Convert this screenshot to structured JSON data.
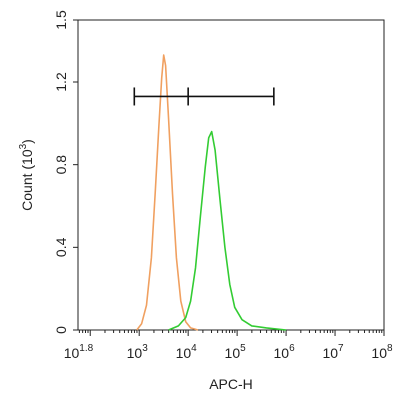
{
  "chart_data": {
    "type": "line",
    "title": "",
    "xlabel": "APC-H",
    "ylabel_main": "Count  (10",
    "ylabel_exp": "3",
    "ylabel_close": ")",
    "x_scale": "log10",
    "xlim": [
      1.75,
      8.0
    ],
    "ylim": [
      0,
      1.5
    ],
    "x_ticks": [
      {
        "base": "10",
        "exp": "1.8",
        "log": 1.8
      },
      {
        "base": "10",
        "exp": "3",
        "log": 3
      },
      {
        "base": "10",
        "exp": "4",
        "log": 4
      },
      {
        "base": "10",
        "exp": "5",
        "log": 5
      },
      {
        "base": "10",
        "exp": "6",
        "log": 6
      },
      {
        "base": "10",
        "exp": "7",
        "log": 7
      },
      {
        "base": "10",
        "exp": "8",
        "log": 8
      }
    ],
    "y_ticks": [
      {
        "label": "0",
        "value": 0
      },
      {
        "label": "0.4",
        "value": 0.4
      },
      {
        "label": "0.8",
        "value": 0.8
      },
      {
        "label": "1.2",
        "value": 1.2
      },
      {
        "label": "1.5",
        "value": 1.5
      }
    ],
    "gate": {
      "x_start_log": 2.9,
      "x_mid_log": 4.0,
      "x_end_log": 5.75,
      "y": 1.13
    },
    "series": [
      {
        "color": "#f0a060",
        "points": [
          [
            2.95,
            0.0
          ],
          [
            3.05,
            0.03
          ],
          [
            3.15,
            0.12
          ],
          [
            3.25,
            0.35
          ],
          [
            3.33,
            0.68
          ],
          [
            3.4,
            0.98
          ],
          [
            3.46,
            1.22
          ],
          [
            3.5,
            1.33
          ],
          [
            3.54,
            1.28
          ],
          [
            3.6,
            1.02
          ],
          [
            3.68,
            0.66
          ],
          [
            3.76,
            0.35
          ],
          [
            3.85,
            0.14
          ],
          [
            3.95,
            0.04
          ],
          [
            4.05,
            0.01
          ],
          [
            4.2,
            0.0
          ]
        ]
      },
      {
        "color": "#33cc33",
        "points": [
          [
            3.6,
            0.0
          ],
          [
            3.8,
            0.02
          ],
          [
            3.95,
            0.06
          ],
          [
            4.05,
            0.14
          ],
          [
            4.15,
            0.3
          ],
          [
            4.25,
            0.55
          ],
          [
            4.35,
            0.79
          ],
          [
            4.42,
            0.93
          ],
          [
            4.48,
            0.96
          ],
          [
            4.55,
            0.87
          ],
          [
            4.65,
            0.63
          ],
          [
            4.75,
            0.4
          ],
          [
            4.85,
            0.22
          ],
          [
            4.95,
            0.11
          ],
          [
            5.1,
            0.05
          ],
          [
            5.3,
            0.02
          ],
          [
            5.6,
            0.01
          ],
          [
            6.0,
            0.0
          ]
        ]
      }
    ]
  }
}
